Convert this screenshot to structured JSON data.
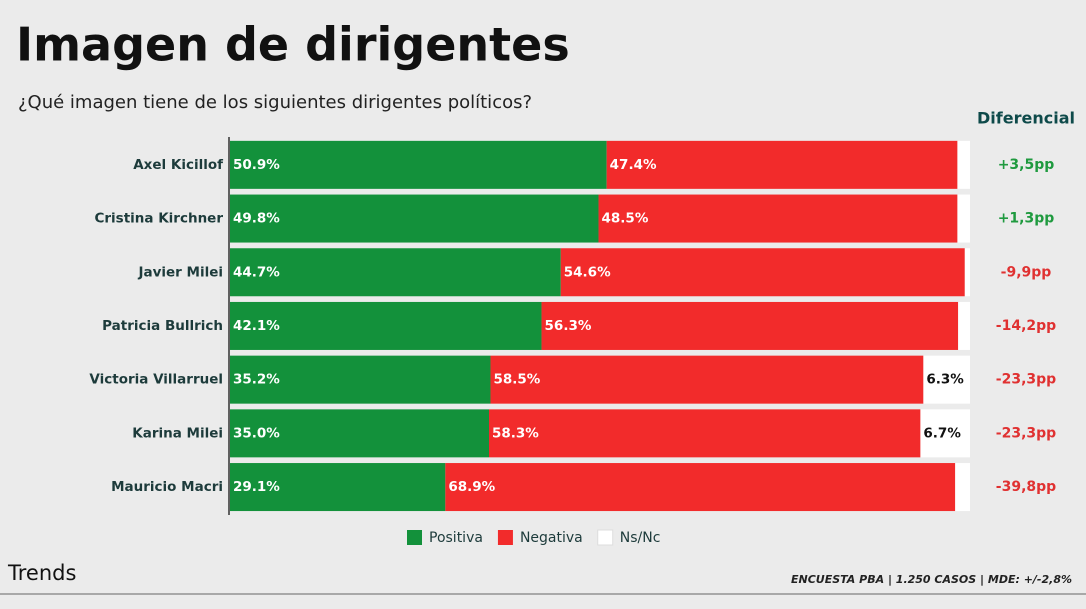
{
  "chart_data": {
    "type": "bar",
    "orientation": "horizontal",
    "stacked": true,
    "title": "Imagen de dirigentes",
    "subtitle": "¿Qué imagen tiene de los siguientes dirigentes políticos?",
    "categories": [
      "Axel Kicillof",
      "Cristina Kirchner",
      "Javier Milei",
      "Patricia Bullrich",
      "Victoria Villarruel",
      "Karina Milei",
      "Mauricio Macri"
    ],
    "series": [
      {
        "name": "Positiva",
        "color": "#13913b",
        "label_color": "#ffffff",
        "values": [
          50.9,
          49.8,
          44.7,
          42.1,
          35.2,
          35.0,
          29.1
        ],
        "value_labels": [
          "50.9%",
          "49.8%",
          "44.7%",
          "42.1%",
          "35.2%",
          "35.0%",
          "29.1%"
        ]
      },
      {
        "name": "Negativa",
        "color": "#f22b2b",
        "label_color": "#ffffff",
        "values": [
          47.4,
          48.5,
          54.6,
          56.3,
          58.5,
          58.3,
          68.9
        ],
        "value_labels": [
          "47.4%",
          "48.5%",
          "54.6%",
          "56.3%",
          "58.5%",
          "58.3%",
          "68.9%"
        ]
      },
      {
        "name": "Ns/Nc",
        "color": "#ffffff",
        "label_color": "#111111",
        "values": [
          1.7,
          1.7,
          0.7,
          1.6,
          6.3,
          6.7,
          2.0
        ],
        "value_labels": [
          null,
          null,
          null,
          null,
          "6.3%",
          "6.7%",
          null
        ]
      }
    ],
    "xlim": [
      0,
      100
    ],
    "legend": "bottom",
    "differential": {
      "title": "Diferencial",
      "labels": [
        "+3,5pp",
        "+1,3pp",
        "-9,9pp",
        "-14,2pp",
        "-23,3pp",
        "-23,3pp",
        "-39,8pp"
      ],
      "positive_color": "#1f9a3f",
      "negative_color": "#e03131"
    },
    "logo": "Trends",
    "source": "ENCUESTA PBA | 1.250 CASOS | MDE: +/-2,8%"
  }
}
